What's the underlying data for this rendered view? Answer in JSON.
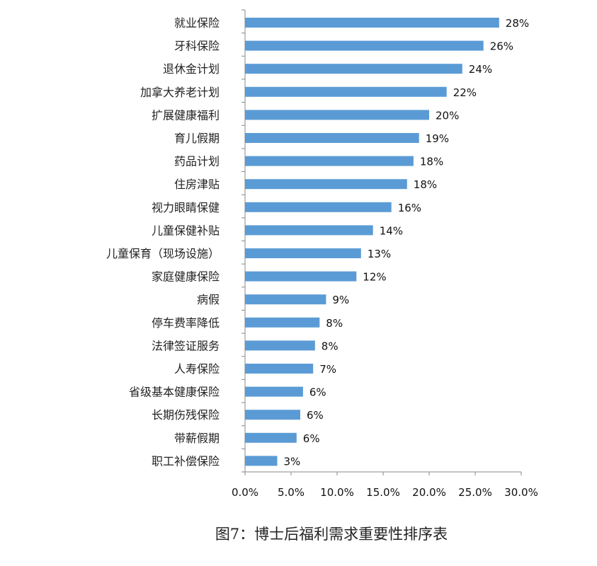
{
  "chart_data": {
    "type": "bar",
    "orientation": "horizontal",
    "categories": [
      "就业保险",
      "牙科保险",
      "退休金计划",
      "加拿大养老计划",
      "扩展健康福利",
      "育儿假期",
      "药品计划",
      "住房津贴",
      "视力眼睛保健",
      "儿童保健补贴",
      "儿童保育（现场设施）",
      "家庭健康保险",
      "病假",
      "停车费率降低",
      "法律签证服务",
      "人寿保险",
      "省级基本健康保险",
      "长期伤残保险",
      "带薪假期",
      "职工补偿保险"
    ],
    "values": [
      27.6,
      25.9,
      23.6,
      21.9,
      20.0,
      18.9,
      18.3,
      17.6,
      15.9,
      13.9,
      12.6,
      12.1,
      8.8,
      8.1,
      7.6,
      7.4,
      6.3,
      6.0,
      5.6,
      3.5
    ],
    "value_labels": [
      "28%",
      "26%",
      "24%",
      "22%",
      "20%",
      "19%",
      "18%",
      "18%",
      "16%",
      "14%",
      "13%",
      "12%",
      "9%",
      "8%",
      "8%",
      "7%",
      "6%",
      "6%",
      "6%",
      "3%"
    ],
    "x_ticks": [
      "0.0%",
      "5.0%",
      "10.0%",
      "15.0%",
      "20.0%",
      "25.0%",
      "30.0%"
    ],
    "xlim": [
      0,
      30
    ],
    "grid": false,
    "bar_color": "#5B9BD5",
    "caption": "图7：博士后福利需求重要性排序表"
  }
}
